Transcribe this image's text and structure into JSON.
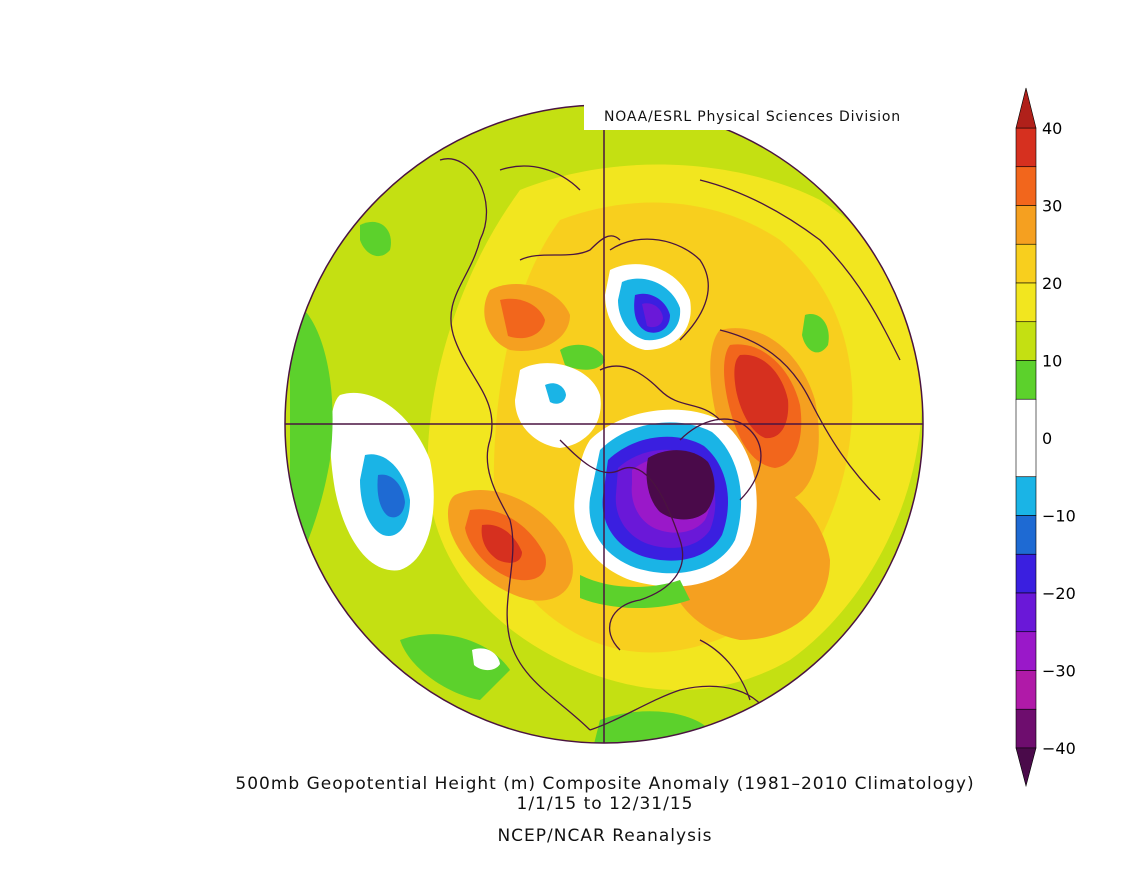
{
  "credit": "NOAA/ESRL Physical Sciences Division",
  "title_line1": "500mb Geopotential Height (m) Composite Anomaly (1981–2010 Climatology)",
  "title_line2": "1/1/15   to 12/31/15",
  "title_line3": "NCEP/NCAR Reanalysis",
  "colorbar": {
    "min": -40,
    "max": 40,
    "tick_labels": [
      "40",
      "30",
      "20",
      "10",
      "0",
      "−10",
      "−20",
      "−30",
      "−40"
    ],
    "bins": [
      {
        "from": 35,
        "to": 40,
        "color": "#d6301f"
      },
      {
        "from": 30,
        "to": 35,
        "color": "#f2661c"
      },
      {
        "from": 25,
        "to": 30,
        "color": "#f5a020"
      },
      {
        "from": 20,
        "to": 25,
        "color": "#f8cf1e"
      },
      {
        "from": 15,
        "to": 20,
        "color": "#f2e61f"
      },
      {
        "from": 10,
        "to": 15,
        "color": "#c4e012"
      },
      {
        "from": 5,
        "to": 10,
        "color": "#5cd12c"
      },
      {
        "from": -5,
        "to": 5,
        "color": "#ffffff"
      },
      {
        "from": -10,
        "to": -5,
        "color": "#1ab4e6"
      },
      {
        "from": -15,
        "to": -10,
        "color": "#1e6ad3"
      },
      {
        "from": -20,
        "to": -15,
        "color": "#3a1fe0"
      },
      {
        "from": -25,
        "to": -20,
        "color": "#6a18d8"
      },
      {
        "from": -30,
        "to": -25,
        "color": "#9a18c9"
      },
      {
        "from": -35,
        "to": -30,
        "color": "#b01aa8"
      },
      {
        "from": -40,
        "to": -35,
        "color": "#6e0d6e"
      }
    ],
    "over_color": "#b0201a",
    "under_color": "#4a0a4a"
  }
}
